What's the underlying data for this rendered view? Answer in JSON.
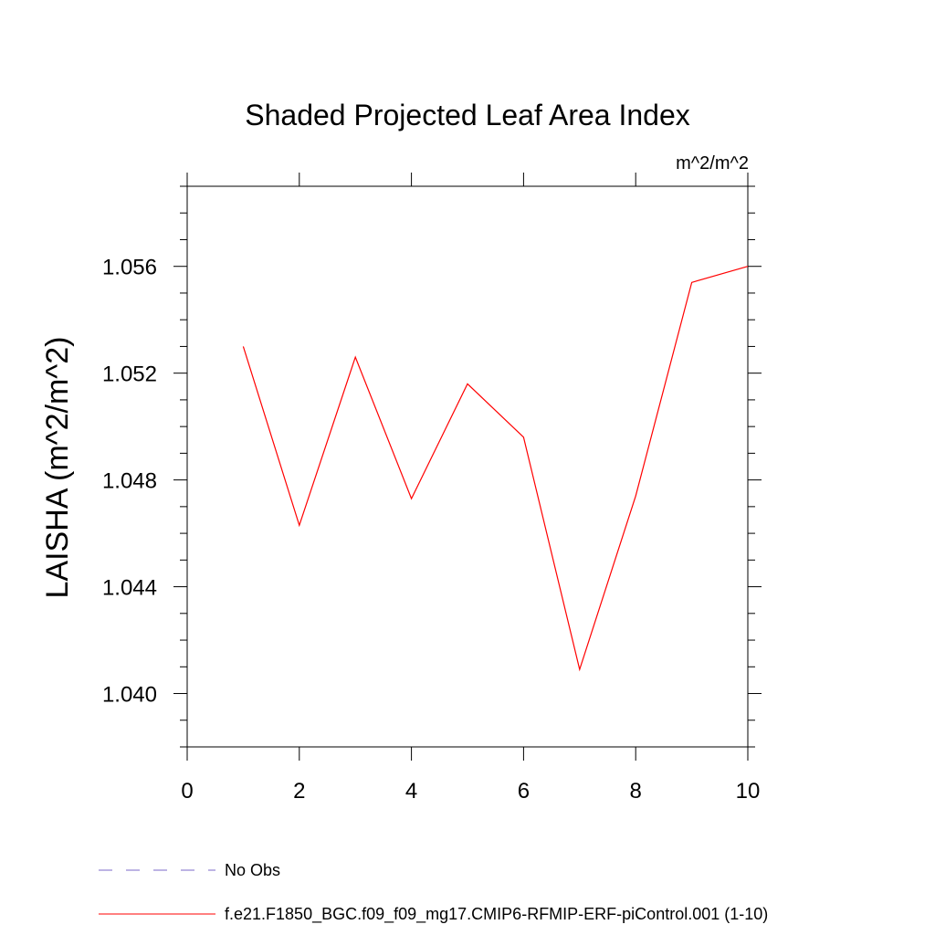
{
  "chart_data": {
    "type": "line",
    "title": "Shaded Projected Leaf Area Index",
    "units_label": "m^2/m^2",
    "xlabel": "",
    "ylabel": "LAISHA  (m^2/m^2)",
    "xlim": [
      0,
      10
    ],
    "ylim": [
      1.038,
      1.059
    ],
    "x_ticks": [
      0,
      2,
      4,
      6,
      8,
      10
    ],
    "x_tick_labels": [
      "0",
      "2",
      "4",
      "6",
      "8",
      "10"
    ],
    "y_ticks": [
      1.04,
      1.044,
      1.048,
      1.052,
      1.056
    ],
    "y_tick_labels": [
      "1.040",
      "1.044",
      "1.048",
      "1.052",
      "1.056"
    ],
    "grid": false,
    "legend_position": "bottom",
    "series": [
      {
        "name": "f.e21.F1850_BGC.f09_f09_mg17.CMIP6-RFMIP-ERF-piControl.001 (1-10)",
        "color": "#ff0000",
        "style": "solid",
        "x": [
          1,
          2,
          3,
          4,
          5,
          6,
          7,
          8,
          9,
          10
        ],
        "values": [
          1.053,
          1.0463,
          1.0526,
          1.0473,
          1.0516,
          1.0496,
          1.0409,
          1.0474,
          1.0554,
          1.056
        ]
      }
    ],
    "legend": [
      {
        "label": "No Obs",
        "color": "#7b68c8",
        "style": "dashed"
      },
      {
        "label": "f.e21.F1850_BGC.f09_f09_mg17.CMIP6-RFMIP-ERF-piControl.001 (1-10)",
        "color": "#ff0000",
        "style": "solid"
      }
    ]
  }
}
